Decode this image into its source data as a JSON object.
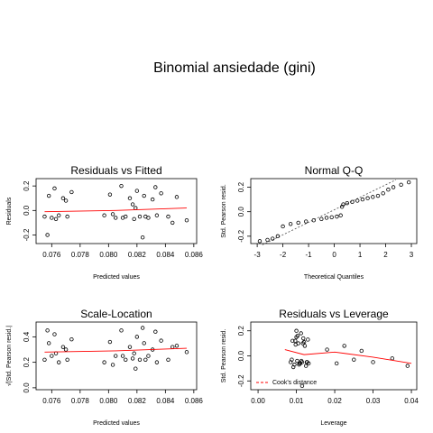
{
  "title": "Binomial ansiedade (gini)",
  "chart_data": [
    {
      "type": "scatter",
      "title": "Residuals vs Fitted",
      "xlabel": "Predicted values",
      "ylabel": "Residuals",
      "xlim": [
        0.0749,
        0.0862
      ],
      "ylim": [
        -0.27,
        0.26
      ],
      "xticks": [
        0.076,
        0.078,
        {
          "value": 0.08,
          "label": "0.080"
        },
        0.082,
        0.084,
        0.086
      ],
      "yticks": [
        -0.2,
        {
          "value": 0,
          "label": "0.0"
        },
        0.2
      ],
      "color": "#000000",
      "x": [
        0.0755,
        0.0758,
        0.076,
        0.0762,
        0.0765,
        0.0768,
        0.0771,
        0.0774,
        0.0757,
        0.0763,
        0.077,
        0.0797,
        0.0801,
        0.0805,
        0.0809,
        0.0812,
        0.0815,
        0.0818,
        0.082,
        0.0822,
        0.0825,
        0.0828,
        0.0831,
        0.0834,
        0.0837,
        0.0842,
        0.0848,
        0.0855,
        0.0803,
        0.0817,
        0.0824,
        0.0833,
        0.081,
        0.0826,
        0.0819,
        0.0845
      ],
      "y": [
        -0.05,
        0.12,
        -0.06,
        0.18,
        -0.04,
        0.1,
        -0.05,
        0.15,
        -0.2,
        -0.07,
        0.08,
        -0.04,
        0.13,
        -0.06,
        0.2,
        -0.05,
        0.1,
        -0.07,
        0.16,
        -0.05,
        0.12,
        -0.06,
        0.09,
        -0.04,
        0.14,
        -0.05,
        0.11,
        -0.08,
        -0.03,
        0.05,
        -0.22,
        0.19,
        -0.06,
        -0.05,
        0.02,
        -0.1
      ],
      "smooth": {
        "color": "#ff0000",
        "x": [
          0.0755,
          0.0805,
          0.0855
        ],
        "y": [
          -0.01,
          0.0,
          0.02
        ]
      }
    },
    {
      "type": "scatter",
      "title": "Normal Q-Q",
      "xlabel": "Theoretical Quantiles",
      "ylabel": "Std. Pearson resid.",
      "xlim": [
        -3.25,
        3.21
      ],
      "ylim": [
        -0.26,
        0.27
      ],
      "xticks": [
        -3,
        -2,
        -1,
        0,
        1,
        2,
        3
      ],
      "yticks": [
        -0.2,
        {
          "value": 0,
          "label": "0.0"
        },
        0.2
      ],
      "color": "#000000",
      "x": [
        -2.9,
        -2.6,
        -2.4,
        -2.2,
        -2.0,
        -1.7,
        -1.4,
        -1.1,
        -0.8,
        -0.5,
        -0.3,
        -0.1,
        0.1,
        0.25,
        0.3,
        0.35,
        0.5,
        0.7,
        0.9,
        1.1,
        1.3,
        1.5,
        1.7,
        1.9,
        2.1,
        2.3,
        2.6,
        2.9
      ],
      "y": [
        -0.24,
        -0.23,
        -0.22,
        -0.2,
        -0.12,
        -0.1,
        -0.09,
        -0.08,
        -0.07,
        -0.06,
        -0.05,
        -0.045,
        -0.04,
        -0.03,
        0.04,
        0.06,
        0.07,
        0.08,
        0.09,
        0.1,
        0.11,
        0.12,
        0.13,
        0.15,
        0.18,
        0.2,
        0.22,
        0.24
      ],
      "reference_line": {
        "color": "#555555",
        "x": [
          -2.8,
          2.4
        ],
        "y": [
          -0.27,
          0.26
        ]
      }
    },
    {
      "type": "scatter",
      "title": "Scale-Location",
      "xlabel": "Predicted values",
      "ylabel": "√|Std. Pearson resid.|",
      "xlim": [
        0.0749,
        0.0862
      ],
      "ylim": [
        -0.015,
        0.516
      ],
      "xticks": [
        0.076,
        0.078,
        {
          "value": 0.08,
          "label": "0.080"
        },
        0.082,
        0.084,
        0.086
      ],
      "yticks": [
        {
          "value": 0,
          "label": "0.0"
        },
        0.2,
        0.4
      ],
      "color": "#000000",
      "x": [
        0.0755,
        0.0758,
        0.076,
        0.0762,
        0.0765,
        0.0768,
        0.0771,
        0.0774,
        0.0757,
        0.0763,
        0.077,
        0.0797,
        0.0801,
        0.0805,
        0.0809,
        0.0812,
        0.0815,
        0.0818,
        0.082,
        0.0822,
        0.0825,
        0.0828,
        0.0831,
        0.0834,
        0.0837,
        0.0842,
        0.0848,
        0.0855,
        0.0803,
        0.0817,
        0.0824,
        0.0833,
        0.081,
        0.0826,
        0.0819,
        0.0845
      ],
      "y": [
        0.22,
        0.35,
        0.25,
        0.42,
        0.2,
        0.32,
        0.22,
        0.38,
        0.45,
        0.27,
        0.3,
        0.2,
        0.36,
        0.25,
        0.45,
        0.22,
        0.32,
        0.27,
        0.4,
        0.22,
        0.35,
        0.25,
        0.3,
        0.2,
        0.37,
        0.22,
        0.33,
        0.28,
        0.18,
        0.23,
        0.47,
        0.44,
        0.25,
        0.22,
        0.15,
        0.32
      ],
      "smooth": {
        "color": "#ff0000",
        "x": [
          0.0755,
          0.0805,
          0.0855
        ],
        "y": [
          0.28,
          0.29,
          0.31
        ]
      }
    },
    {
      "type": "scatter",
      "title": "Residuals vs Leverage",
      "xlabel": "Leverage",
      "ylabel": "Std. Pearson resid.",
      "xlim": [
        -0.0019,
        0.0414
      ],
      "ylim": [
        -0.27,
        0.27
      ],
      "xticks": [
        {
          "value": 0,
          "label": "0.00"
        },
        0.01,
        0.02,
        0.03,
        0.04
      ],
      "yticks": [
        -0.2,
        {
          "value": 0,
          "label": "0.0"
        },
        0.2
      ],
      "color": "#000000",
      "x": [
        0.0085,
        0.009,
        0.0095,
        0.01,
        0.0102,
        0.0105,
        0.011,
        0.0112,
        0.0115,
        0.012,
        0.0125,
        0.013,
        0.0088,
        0.0098,
        0.0108,
        0.0118,
        0.0128,
        0.0092,
        0.0103,
        0.0113,
        0.0122,
        0.0132,
        0.0097,
        0.0107,
        0.0117,
        0.0127,
        0.018,
        0.0205,
        0.0225,
        0.025,
        0.027,
        0.03,
        0.035,
        0.039,
        0.0115,
        0.01
      ],
      "y": [
        -0.05,
        0.12,
        -0.07,
        0.15,
        -0.04,
        0.1,
        -0.06,
        0.18,
        -0.05,
        0.11,
        -0.08,
        0.13,
        -0.03,
        0.09,
        -0.06,
        0.14,
        -0.05,
        -0.09,
        0.16,
        -0.04,
        0.08,
        -0.06,
        0.12,
        -0.07,
        0.1,
        -0.05,
        0.05,
        -0.06,
        0.08,
        -0.03,
        0.04,
        -0.05,
        -0.02,
        -0.08,
        -0.24,
        0.2
      ],
      "smooth": {
        "color": "#ff0000",
        "x": [
          0.007,
          0.012,
          0.02,
          0.03,
          0.04
        ],
        "y": [
          0.05,
          0.01,
          0.03,
          -0.01,
          -0.06
        ]
      },
      "legend": {
        "text": "Cook's distance",
        "color": "#ff0000",
        "corner": "bottom-left"
      }
    }
  ]
}
